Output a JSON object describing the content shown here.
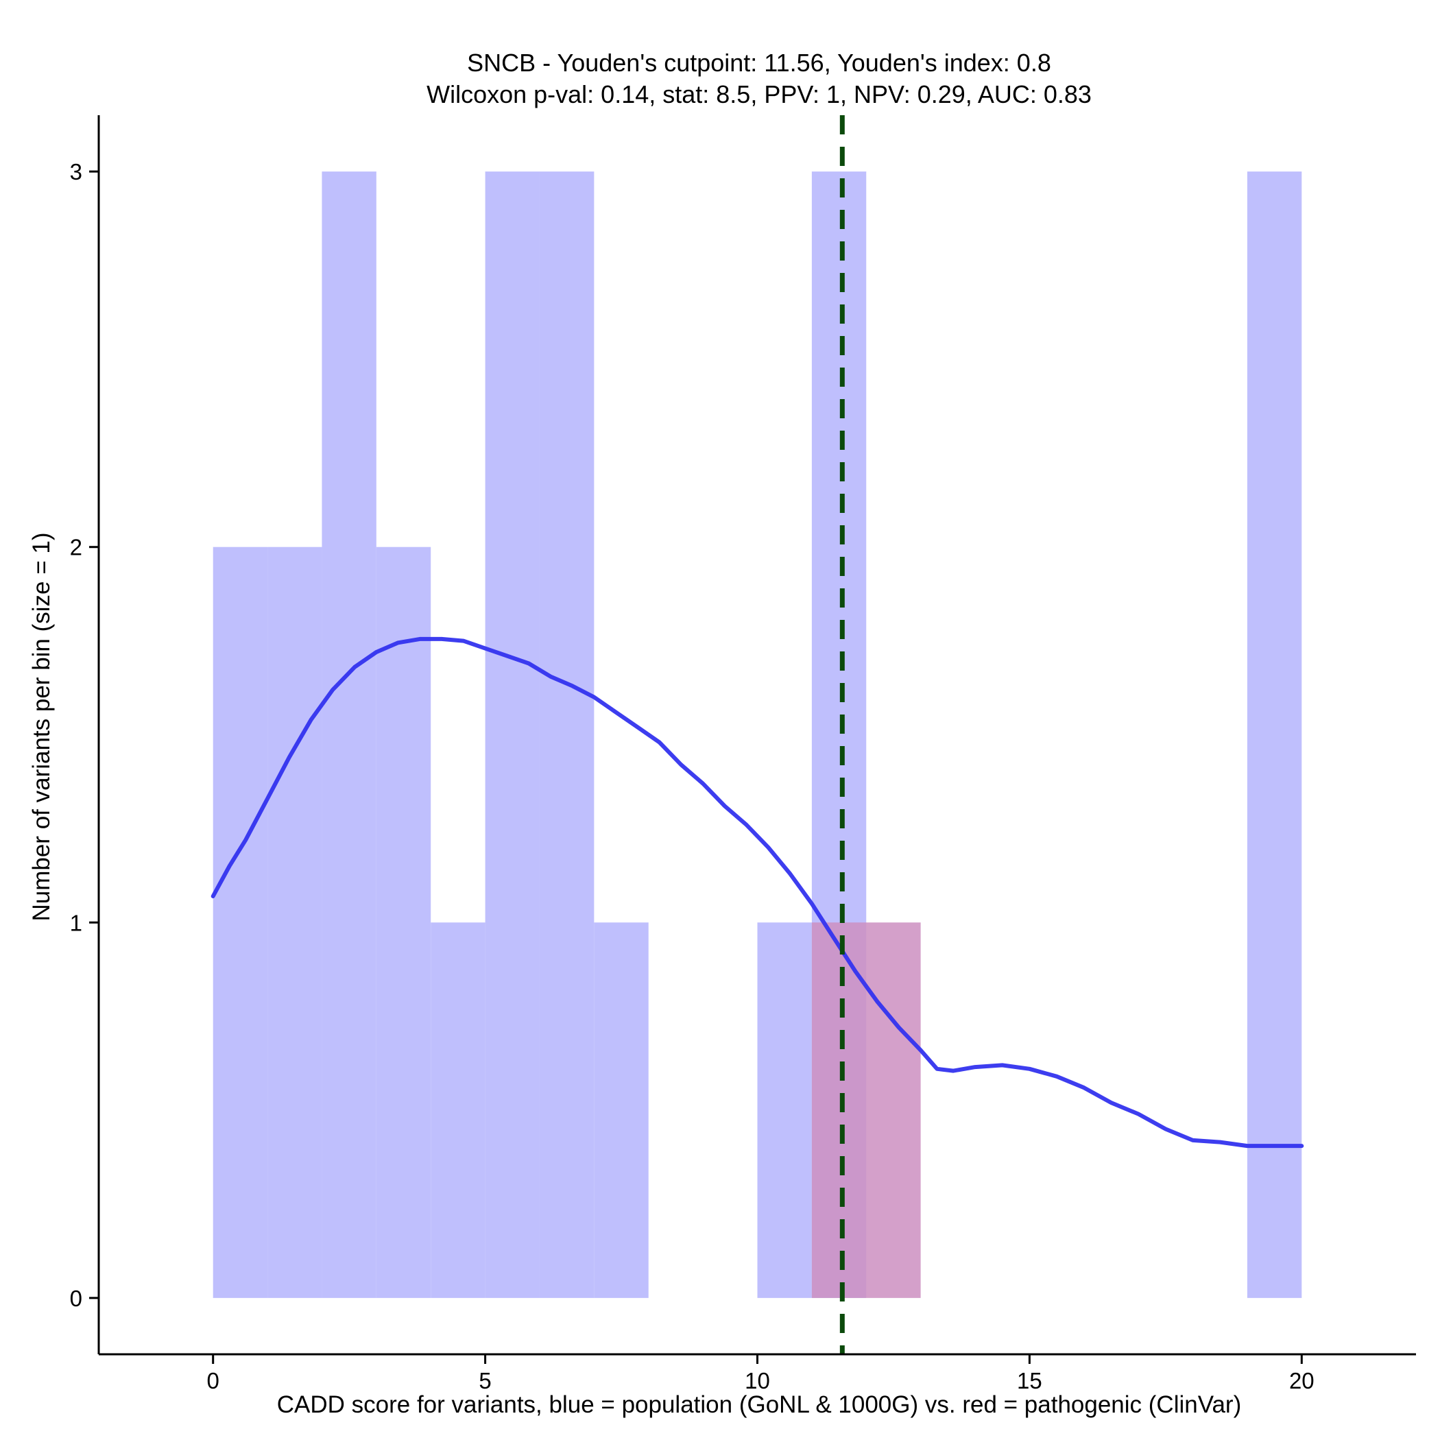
{
  "chart_data": {
    "type": "bar",
    "title": "SNCB - Youden's cutpoint: 11.56, Youden's index: 0.8",
    "subtitle": "Wilcoxon p-val: 0.14, stat: 8.5, PPV: 1, NPV: 0.29, AUC: 0.83",
    "xlabel": "CADD score for variants, blue = population (GoNL & 1000G) vs. red = pathogenic (ClinVar)",
    "ylabel": "Number of variants per bin (size = 1)",
    "xlim": [
      -2.1,
      22.1
    ],
    "ylim": [
      -0.15,
      3.15
    ],
    "x_ticks": [
      0,
      5,
      10,
      15,
      20
    ],
    "y_ticks": [
      0,
      1,
      2,
      3
    ],
    "bin_width": 1,
    "series": [
      {
        "color": "#bfbffd",
        "bins": [
          {
            "x0": 0,
            "x1": 1,
            "count": 2
          },
          {
            "x0": 1,
            "x1": 2,
            "count": 2
          },
          {
            "x0": 2,
            "x1": 3,
            "count": 3
          },
          {
            "x0": 3,
            "x1": 4,
            "count": 2
          },
          {
            "x0": 4,
            "x1": 5,
            "count": 1
          },
          {
            "x0": 5,
            "x1": 6,
            "count": 3
          },
          {
            "x0": 6,
            "x1": 7,
            "count": 3
          },
          {
            "x0": 7,
            "x1": 8,
            "count": 1
          },
          {
            "x0": 10,
            "x1": 11,
            "count": 1
          },
          {
            "x0": 11,
            "x1": 12,
            "count": 3
          },
          {
            "x0": 19,
            "x1": 20,
            "count": 3
          }
        ]
      },
      {
        "color": "#cd8fc1",
        "bins": [
          {
            "x0": 11,
            "x1": 13,
            "count": 1
          }
        ]
      }
    ],
    "density_curve": {
      "color": "#3333ee",
      "points": [
        [
          0.0,
          1.07
        ],
        [
          0.3,
          1.15
        ],
        [
          0.6,
          1.22
        ],
        [
          1.0,
          1.33
        ],
        [
          1.4,
          1.44
        ],
        [
          1.8,
          1.54
        ],
        [
          2.2,
          1.62
        ],
        [
          2.6,
          1.68
        ],
        [
          3.0,
          1.72
        ],
        [
          3.4,
          1.745
        ],
        [
          3.8,
          1.755
        ],
        [
          4.2,
          1.755
        ],
        [
          4.6,
          1.75
        ],
        [
          5.0,
          1.73
        ],
        [
          5.4,
          1.71
        ],
        [
          5.8,
          1.69
        ],
        [
          6.2,
          1.655
        ],
        [
          6.6,
          1.63
        ],
        [
          7.0,
          1.6
        ],
        [
          7.4,
          1.56
        ],
        [
          7.8,
          1.52
        ],
        [
          8.2,
          1.48
        ],
        [
          8.6,
          1.42
        ],
        [
          9.0,
          1.37
        ],
        [
          9.4,
          1.31
        ],
        [
          9.8,
          1.26
        ],
        [
          10.2,
          1.2
        ],
        [
          10.6,
          1.13
        ],
        [
          11.0,
          1.05
        ],
        [
          11.4,
          0.96
        ],
        [
          11.8,
          0.87
        ],
        [
          12.2,
          0.79
        ],
        [
          12.6,
          0.72
        ],
        [
          13.0,
          0.66
        ],
        [
          13.3,
          0.61
        ],
        [
          13.6,
          0.605
        ],
        [
          14.0,
          0.615
        ],
        [
          14.5,
          0.62
        ],
        [
          15.0,
          0.61
        ],
        [
          15.5,
          0.59
        ],
        [
          16.0,
          0.56
        ],
        [
          16.5,
          0.52
        ],
        [
          17.0,
          0.49
        ],
        [
          17.5,
          0.45
        ],
        [
          18.0,
          0.42
        ],
        [
          18.5,
          0.415
        ],
        [
          19.0,
          0.405
        ],
        [
          19.5,
          0.405
        ],
        [
          20.0,
          0.405
        ]
      ]
    },
    "cutpoint": {
      "value": 11.56,
      "color": "#0b4a0b",
      "style": "dashed"
    },
    "legend": "none",
    "grid": false
  }
}
